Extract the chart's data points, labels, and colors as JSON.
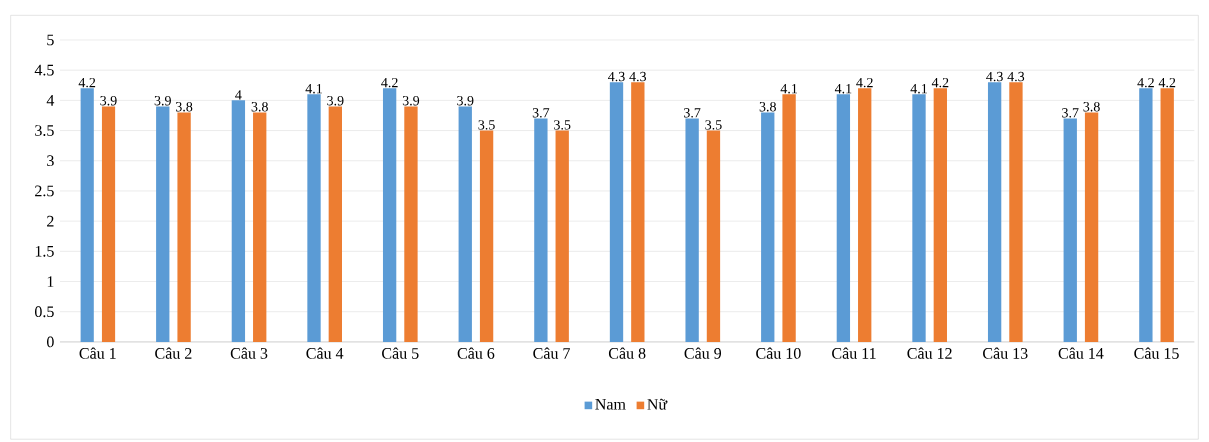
{
  "chart_data": {
    "type": "bar",
    "categories": [
      "Câu 1",
      "Câu 2",
      "Câu 3",
      "Câu 4",
      "Câu 5",
      "Câu 6",
      "Câu 7",
      "Câu 8",
      "Câu 9",
      "Câu 10",
      "Câu 11",
      "Câu 12",
      "Câu 13",
      "Câu 14",
      "Câu 15"
    ],
    "series": [
      {
        "name": "Nam",
        "color": "#5b9bd5",
        "values": [
          4.2,
          3.9,
          4,
          4.1,
          4.2,
          3.9,
          3.7,
          4.3,
          3.7,
          3.8,
          4.1,
          4.1,
          4.3,
          3.7,
          4.2
        ]
      },
      {
        "name": "Nữ",
        "color": "#ed7d31",
        "values": [
          3.9,
          3.8,
          3.8,
          3.9,
          3.9,
          3.5,
          3.5,
          4.3,
          3.5,
          4.1,
          4.2,
          4.2,
          4.3,
          3.8,
          4.2
        ]
      }
    ],
    "ylim": [
      0,
      5
    ],
    "yticks": [
      0,
      0.5,
      1,
      1.5,
      2,
      2.5,
      3,
      3.5,
      4,
      4.5,
      5
    ],
    "grid": "y",
    "legend": "bottom",
    "data_labels": true
  }
}
